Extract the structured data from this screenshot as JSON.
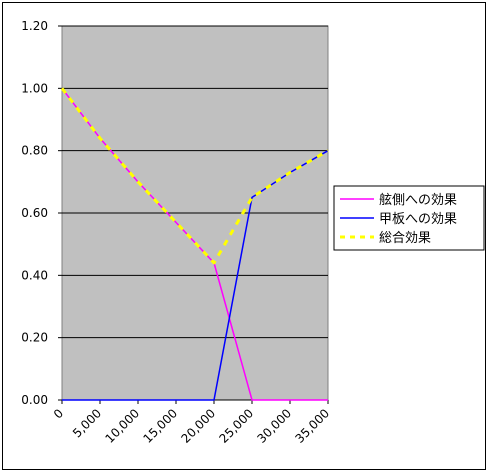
{
  "chart_data": {
    "type": "line",
    "x_ticks": [
      "0",
      "5,000",
      "10,000",
      "15,000",
      "20,000",
      "25,000",
      "30,000",
      "35,000"
    ],
    "y_ticks": [
      "0.00",
      "0.20",
      "0.40",
      "0.60",
      "0.80",
      "1.00",
      "1.20"
    ],
    "xlim": [
      0,
      35000
    ],
    "ylim": [
      0,
      1.2
    ],
    "grid": "horizontal",
    "legend_position": "right",
    "plot_background": "#c0c0c0",
    "series": [
      {
        "name": "舷側への効果",
        "color": "#ff00ff",
        "style": "solid",
        "points": [
          [
            0,
            1.0
          ],
          [
            5000,
            0.84
          ],
          [
            10000,
            0.7
          ],
          [
            15000,
            0.57
          ],
          [
            20000,
            0.44
          ],
          [
            25000,
            0.0
          ],
          [
            35000,
            0.0
          ]
        ]
      },
      {
        "name": "甲板への効果",
        "color": "#0000ff",
        "style": "solid",
        "points": [
          [
            0,
            0.0
          ],
          [
            20000,
            0.0
          ],
          [
            25000,
            0.65
          ],
          [
            30000,
            0.73
          ],
          [
            35000,
            0.8
          ]
        ]
      },
      {
        "name": "総合効果",
        "color": "#ffff00",
        "style": "dashed",
        "points": [
          [
            0,
            1.0
          ],
          [
            5000,
            0.84
          ],
          [
            10000,
            0.7
          ],
          [
            15000,
            0.57
          ],
          [
            20000,
            0.44
          ],
          [
            25000,
            0.65
          ],
          [
            30000,
            0.73
          ],
          [
            35000,
            0.8
          ]
        ]
      }
    ]
  }
}
